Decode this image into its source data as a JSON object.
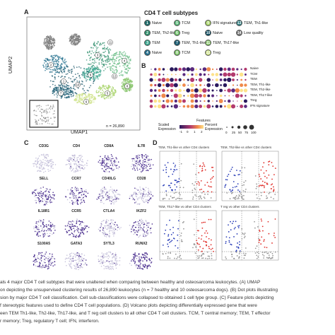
{
  "panels": {
    "a": "A",
    "b": "B",
    "c": "C",
    "d": "D"
  },
  "umap": {
    "xlabel": "UMAP1",
    "ylabel": "UMAP2",
    "n_label": "n = 26,890",
    "cluster_numbers": [
      "1",
      "2",
      "3",
      "4",
      "5",
      "6",
      "7",
      "8",
      "9",
      "10",
      "11",
      "12"
    ]
  },
  "legend": {
    "title": "CD4 T cell subtypes",
    "items": [
      {
        "num": "1",
        "label": "Naive",
        "color": "#1d6b6a"
      },
      {
        "num": "2",
        "label": "TEM, Th2-like",
        "color": "#2f8f6c"
      },
      {
        "num": "3",
        "label": "TEM",
        "color": "#3aa58e"
      },
      {
        "num": "4",
        "label": "Naive",
        "color": "#216d8c"
      },
      {
        "num": "5",
        "label": "TCM",
        "color": "#5bb77a"
      },
      {
        "num": "6",
        "label": "Treg",
        "color": "#6fc06b"
      },
      {
        "num": "7",
        "label": "TEM, Th1-like",
        "color": "#1b5d73"
      },
      {
        "num": "8",
        "label": "TCM",
        "color": "#7ec46a"
      },
      {
        "num": "9",
        "label": "IFN signature",
        "color": "#a9d46c"
      },
      {
        "num": "10",
        "label": "Naive",
        "color": "#0f4e63"
      },
      {
        "num": "11",
        "label": "TEM, Th17-like",
        "color": "#89c66c"
      },
      {
        "num": "12",
        "label": "Treg",
        "color": "#cfe38a"
      },
      {
        "num": "13",
        "label": "TEM, Th1-like",
        "color": "#2e7d80"
      },
      {
        "num": "14",
        "label": "Low quality",
        "color": "#777777"
      }
    ]
  },
  "dotplot": {
    "rows": [
      "Naive",
      "TCM",
      "TEM",
      "TEM, Th1-like",
      "TEM, Th2-like",
      "TEM, Th17-like",
      "Treg",
      "IFN signature"
    ],
    "xlabel": "Features",
    "scale_title": "Scaled\nExpression",
    "scale_ticks": [
      "-1",
      "0",
      "1",
      "2"
    ],
    "pct_title": "Percent\nExpression",
    "pct_ticks": [
      "0",
      "25",
      "50",
      "75",
      "100"
    ]
  },
  "features": [
    [
      "CD3G",
      "CD4",
      "CD8A",
      "IL7R"
    ],
    [
      "SELL",
      "CCR7",
      "CD40LG",
      "CD28"
    ],
    [
      "IL18R1",
      "CCR5",
      "CTLA4",
      "IKZF2"
    ],
    [
      "S100A5",
      "GATA3",
      "SYTL3",
      "RUNX2"
    ]
  ],
  "volcano": {
    "titles": [
      "TEM, Th1-like vs other CD4 clusters",
      "TEM, Th2-like vs other CD4 clusters",
      "TEM, Th17-like vs other CD4 clusters",
      "T reg vs other CD4 clusters"
    ]
  },
  "caption": {
    "lines": [
      "als 4 major CD4 T cell subtypes that were unaltered when comparing between healthy and osteosarcoma leukocytes. (A) UMAP",
      "on depicting the unsupervised clustering results of 26,890 leukocytes (n = 7 healthy and 10 osteosarcoma dogs). (B) Dot plots illustrating",
      "sion by major CD4 T cell classification. Cell sub-classifications were collapsed to obtained 1 cell type group. (C) Feature plots depicting",
      "f stereotypic features used to define CD4 T cell populations. (D) Volcano plots depicting differentially expressed gene that were",
      "een TEM Th1-like, Th2-like, Th17-like, and T reg cell clusters to all other CD4 T cell clusters. TCM, T central memory; TEM, T effector",
      "r memory; Treg, regulatory T cell; IFN, interferon."
    ]
  },
  "colors": {
    "umap_dark": "#0f4e63",
    "umap_mid": "#2f8f6c",
    "umap_light": "#cfe38a",
    "feature_purple": "#4b2f8f",
    "volcano_up": "#e0302b",
    "volcano_down": "#2b3fb8"
  }
}
